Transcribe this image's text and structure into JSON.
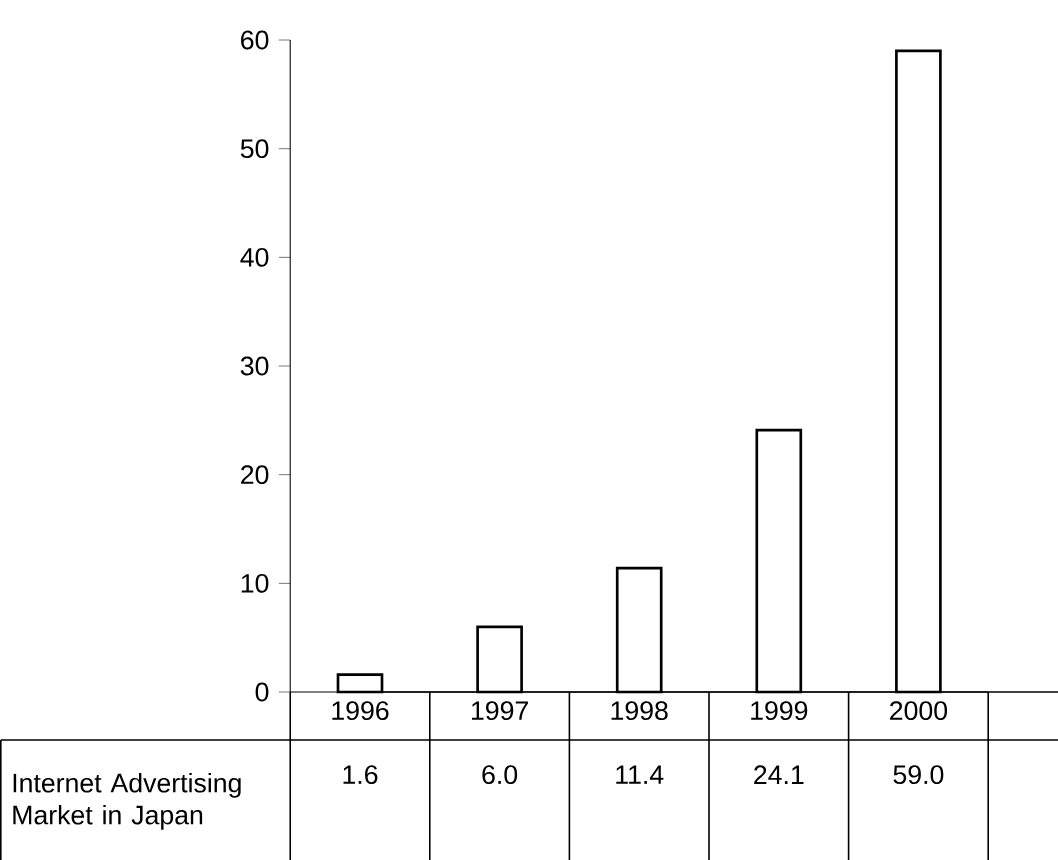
{
  "chart_data": {
    "type": "bar",
    "categories": [
      "1996",
      "1997",
      "1998",
      "1999",
      "2000"
    ],
    "series": [
      {
        "name": "Internet Advertising Market in Japan",
        "color": "#ffffff",
        "values": [
          1.6,
          6.0,
          11.4,
          24.1,
          59.0
        ],
        "value_labels": [
          "1.6",
          "6.0",
          "11.4",
          "24.1",
          "59.0"
        ]
      }
    ],
    "ylim": [
      0,
      60
    ],
    "yticks": [
      0,
      10,
      20,
      30,
      40,
      50,
      60
    ]
  }
}
